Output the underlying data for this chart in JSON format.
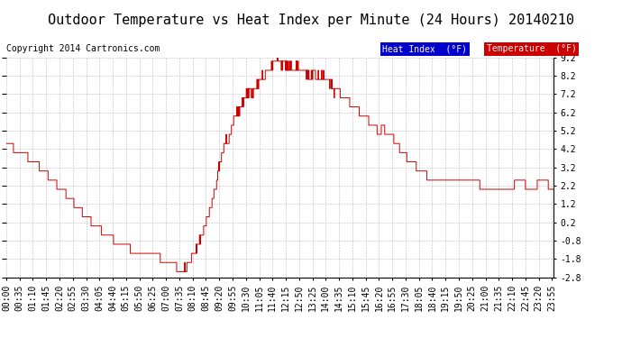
{
  "title": "Outdoor Temperature vs Heat Index per Minute (24 Hours) 20140210",
  "copyright": "Copyright 2014 Cartronics.com",
  "ylim": [
    -2.8,
    9.2
  ],
  "yticks": [
    -2.8,
    -1.8,
    -0.8,
    0.2,
    1.2,
    2.2,
    3.2,
    4.2,
    5.2,
    6.2,
    7.2,
    8.2,
    9.2
  ],
  "line_color": "#cc0000",
  "background_color": "#ffffff",
  "grid_color": "#aaaaaa",
  "legend_heat_bg": "#0000cc",
  "legend_temp_bg": "#cc0000",
  "legend_text_color": "#ffffff",
  "title_fontsize": 11,
  "copyright_fontsize": 7,
  "tick_fontsize": 7,
  "num_minutes": 1440,
  "xtick_step": 35
}
